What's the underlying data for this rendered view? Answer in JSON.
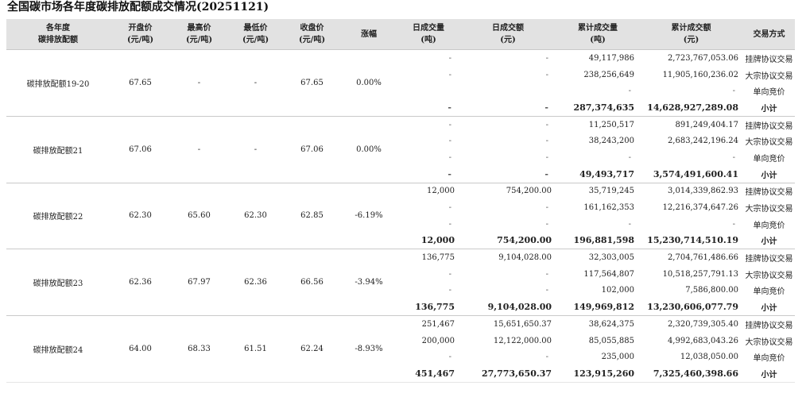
{
  "title": "全国碳市场各年度碳排放配额成交情况(20251121)",
  "headers": [
    {
      "line1": "各年度",
      "line2": "碳排放配额"
    },
    {
      "line1": "开盘价",
      "line2": "(元/吨)"
    },
    {
      "line1": "最高价",
      "line2": "(元/吨)"
    },
    {
      "line1": "最低价",
      "line2": "(元/吨)"
    },
    {
      "line1": "收盘价",
      "line2": "(元/吨)"
    },
    {
      "line1": "涨幅",
      "line2": ""
    },
    {
      "line1": "日成交量",
      "line2": "(吨)"
    },
    {
      "line1": "日成交额",
      "line2": "(元)"
    },
    {
      "line1": "累计成交量",
      "line2": "(吨)"
    },
    {
      "line1": "累计成交额",
      "line2": "(元)"
    },
    {
      "line1": "交易方式",
      "line2": ""
    }
  ],
  "groups": [
    {
      "name": "碳排放配额19-20",
      "open": "67.65",
      "high": "-",
      "low": "-",
      "close": "67.65",
      "change": "0.00%",
      "rows": [
        {
          "dvol": "-",
          "damt": "-",
          "cvol": "49,117,986",
          "camt": "2,723,767,053.06",
          "method": "挂牌协议交易"
        },
        {
          "dvol": "-",
          "damt": "-",
          "cvol": "238,256,649",
          "camt": "11,905,160,236.02",
          "method": "大宗协议交易"
        },
        {
          "dvol": "",
          "damt": "",
          "cvol": "-",
          "camt": "-",
          "method": "单向竞价"
        },
        {
          "dvol": "-",
          "damt": "-",
          "cvol": "287,374,635",
          "camt": "14,628,927,289.08",
          "method": "小计"
        }
      ]
    },
    {
      "name": "碳排放配额21",
      "open": "67.06",
      "high": "-",
      "low": "-",
      "close": "67.06",
      "change": "0.00%",
      "rows": [
        {
          "dvol": "-",
          "damt": "-",
          "cvol": "11,250,517",
          "camt": "891,249,404.17",
          "method": "挂牌协议交易"
        },
        {
          "dvol": "-",
          "damt": "-",
          "cvol": "38,243,200",
          "camt": "2,683,242,196.24",
          "method": "大宗协议交易"
        },
        {
          "dvol": "-",
          "damt": "-",
          "cvol": "-",
          "camt": "-",
          "method": "单向竞价"
        },
        {
          "dvol": "-",
          "damt": "-",
          "cvol": "49,493,717",
          "camt": "3,574,491,600.41",
          "method": "小计"
        }
      ]
    },
    {
      "name": "碳排放配额22",
      "open": "62.30",
      "high": "65.60",
      "low": "62.30",
      "close": "62.85",
      "change": "-6.19%",
      "rows": [
        {
          "dvol": "12,000",
          "damt": "754,200.00",
          "cvol": "35,719,245",
          "camt": "3,014,339,862.93",
          "method": "挂牌协议交易"
        },
        {
          "dvol": "-",
          "damt": "-",
          "cvol": "161,162,353",
          "camt": "12,216,374,647.26",
          "method": "大宗协议交易"
        },
        {
          "dvol": "-",
          "damt": "-",
          "cvol": "-",
          "camt": "-",
          "method": "单向竞价"
        },
        {
          "dvol": "12,000",
          "damt": "754,200.00",
          "cvol": "196,881,598",
          "camt": "15,230,714,510.19",
          "method": "小计"
        }
      ]
    },
    {
      "name": "碳排放配额23",
      "open": "62.36",
      "high": "67.97",
      "low": "62.36",
      "close": "66.56",
      "change": "-3.94%",
      "rows": [
        {
          "dvol": "136,775",
          "damt": "9,104,028.00",
          "cvol": "32,303,005",
          "camt": "2,704,761,486.66",
          "method": "挂牌协议交易"
        },
        {
          "dvol": "-",
          "damt": "-",
          "cvol": "117,564,807",
          "camt": "10,518,257,791.13",
          "method": "大宗协议交易"
        },
        {
          "dvol": "-",
          "damt": "-",
          "cvol": "102,000",
          "camt": "7,586,800.00",
          "method": "单向竞价"
        },
        {
          "dvol": "136,775",
          "damt": "9,104,028.00",
          "cvol": "149,969,812",
          "camt": "13,230,606,077.79",
          "method": "小计"
        }
      ]
    },
    {
      "name": "碳排放配额24",
      "open": "64.00",
      "high": "68.33",
      "low": "61.51",
      "close": "62.24",
      "change": "-8.93%",
      "rows": [
        {
          "dvol": "251,467",
          "damt": "15,651,650.37",
          "cvol": "38,624,375",
          "camt": "2,320,739,305.40",
          "method": "挂牌协议交易"
        },
        {
          "dvol": "200,000",
          "damt": "12,122,000.00",
          "cvol": "85,055,885",
          "camt": "4,992,683,043.26",
          "method": "大宗协议交易"
        },
        {
          "dvol": "-",
          "damt": "-",
          "cvol": "235,000",
          "camt": "12,038,050.00",
          "method": "单向竞价"
        },
        {
          "dvol": "451,467",
          "damt": "27,773,650.37",
          "cvol": "123,915,260",
          "camt": "7,325,460,398.66",
          "method": "小计"
        }
      ]
    }
  ]
}
